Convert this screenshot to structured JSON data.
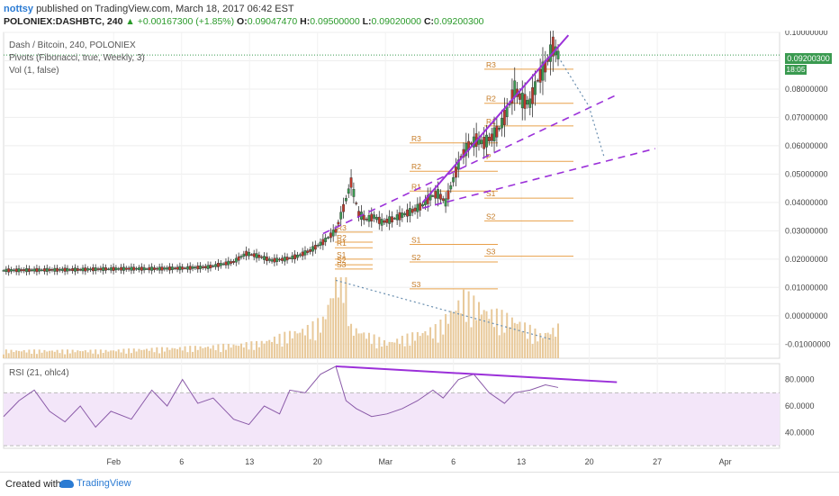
{
  "header": {
    "user": "nottsy",
    "published": "published on TradingView.com, March 18, 2017 06:42 EST",
    "symbol": "POLONIEX:DASHBTC, 240",
    "change_arrow": "▲",
    "change": "+0.00167300 (+1.85%)",
    "o_label": "O:",
    "o": "0.09047470",
    "h_label": "H:",
    "h": "0.09500000",
    "l_label": "L:",
    "l": "0.09020000",
    "c_label": "C:",
    "c": "0.09200300"
  },
  "legend": {
    "main": "Dash / Bitcoin, 240, POLONIEX",
    "pivots": "Pivots (Fibonacci, true, Weekly, 3)",
    "vol": "Vol (1, false)",
    "rsi": "RSI (21, ohlc4)"
  },
  "badges": {
    "price": "0.09200300",
    "time": "18:05"
  },
  "footer": {
    "created": "Created with",
    "brand": "TradingView"
  },
  "colors": {
    "candle_up": "#3a9a50",
    "candle_down": "#c0392b",
    "pivot": "#e8a04a",
    "trend": "#9b30d9",
    "volume": "#e8c99a",
    "rsi": "#8a5aa8",
    "rsi_band": "#f3e6f9"
  },
  "chart_data": {
    "type": "line",
    "x_ticks": [
      "Feb",
      "6",
      "13",
      "20",
      "Mar",
      "6",
      "13",
      "20",
      "27",
      "Apr"
    ],
    "price_axis": [
      "0.10000000",
      "0.09000000",
      "0.08000000",
      "0.07000000",
      "0.06000000",
      "0.05000000",
      "0.04000000",
      "0.03000000",
      "0.02000000",
      "0.01000000",
      "0.00000000",
      "-0.01000000"
    ],
    "rsi_axis": [
      "80.0000",
      "60.0000",
      "40.0000"
    ],
    "ylim_price": [
      -0.015,
      0.1
    ],
    "ylim_rsi": [
      28,
      92
    ],
    "price_points": [
      [
        0,
        0.016
      ],
      [
        10,
        0.0161
      ],
      [
        20,
        0.0162
      ],
      [
        30,
        0.0163
      ],
      [
        40,
        0.0165
      ],
      [
        50,
        0.0166
      ],
      [
        60,
        0.0166
      ],
      [
        70,
        0.0168
      ],
      [
        80,
        0.0172
      ],
      [
        90,
        0.019
      ],
      [
        95,
        0.022
      ],
      [
        100,
        0.021
      ],
      [
        105,
        0.0195
      ],
      [
        110,
        0.02
      ],
      [
        115,
        0.021
      ],
      [
        120,
        0.023
      ],
      [
        125,
        0.026
      ],
      [
        130,
        0.03
      ],
      [
        133,
        0.038
      ],
      [
        136,
        0.047
      ],
      [
        139,
        0.036
      ],
      [
        142,
        0.034
      ],
      [
        145,
        0.035
      ],
      [
        148,
        0.033
      ],
      [
        152,
        0.034
      ],
      [
        156,
        0.0355
      ],
      [
        160,
        0.037
      ],
      [
        164,
        0.039
      ],
      [
        167,
        0.042
      ],
      [
        170,
        0.043
      ],
      [
        173,
        0.04
      ],
      [
        176,
        0.048
      ],
      [
        179,
        0.056
      ],
      [
        182,
        0.06
      ],
      [
        185,
        0.062
      ],
      [
        188,
        0.061
      ],
      [
        191,
        0.063
      ],
      [
        194,
        0.066
      ],
      [
        197,
        0.072
      ],
      [
        200,
        0.08
      ],
      [
        203,
        0.076
      ],
      [
        206,
        0.075
      ],
      [
        209,
        0.083
      ],
      [
        212,
        0.088
      ],
      [
        215,
        0.095
      ],
      [
        217,
        0.092
      ]
    ],
    "rsi_points": [
      [
        0,
        52
      ],
      [
        6,
        64
      ],
      [
        12,
        72
      ],
      [
        18,
        56
      ],
      [
        24,
        48
      ],
      [
        30,
        60
      ],
      [
        36,
        44
      ],
      [
        42,
        56
      ],
      [
        50,
        50
      ],
      [
        58,
        72
      ],
      [
        64,
        60
      ],
      [
        70,
        80
      ],
      [
        76,
        62
      ],
      [
        82,
        66
      ],
      [
        90,
        50
      ],
      [
        96,
        46
      ],
      [
        102,
        60
      ],
      [
        108,
        54
      ],
      [
        112,
        72
      ],
      [
        118,
        70
      ],
      [
        124,
        84
      ],
      [
        128,
        88
      ],
      [
        130,
        90
      ],
      [
        134,
        64
      ],
      [
        138,
        58
      ],
      [
        144,
        52
      ],
      [
        150,
        54
      ],
      [
        156,
        58
      ],
      [
        162,
        64
      ],
      [
        168,
        72
      ],
      [
        172,
        66
      ],
      [
        178,
        80
      ],
      [
        184,
        84
      ],
      [
        190,
        70
      ],
      [
        196,
        62
      ],
      [
        200,
        70
      ],
      [
        206,
        72
      ],
      [
        212,
        76
      ],
      [
        217,
        74
      ]
    ],
    "volume_points": [
      [
        0,
        0.001
      ],
      [
        40,
        0.001
      ],
      [
        80,
        0.0015
      ],
      [
        100,
        0.002
      ],
      [
        120,
        0.004
      ],
      [
        125,
        0.005
      ],
      [
        130,
        0.01
      ],
      [
        133,
        0.013
      ],
      [
        136,
        0.004
      ],
      [
        150,
        0.002
      ],
      [
        170,
        0.004
      ],
      [
        180,
        0.008
      ],
      [
        190,
        0.006
      ],
      [
        200,
        0.005
      ],
      [
        210,
        0.003
      ],
      [
        217,
        0.004
      ]
    ],
    "pivots_left": [
      {
        "label": "R3",
        "value": 0.0295
      },
      {
        "label": "R2",
        "value": 0.026
      },
      {
        "label": "R1",
        "value": 0.024
      },
      {
        "label": "S1",
        "value": 0.02
      },
      {
        "label": "S2",
        "value": 0.018
      },
      {
        "label": "S3",
        "value": 0.0165
      }
    ],
    "pivots_mid": [
      {
        "label": "R3",
        "value": 0.061
      },
      {
        "label": "R2",
        "value": 0.051
      },
      {
        "label": "R1",
        "value": 0.044
      },
      {
        "label": "S1",
        "value": 0.0252
      },
      {
        "label": "S2",
        "value": 0.019
      },
      {
        "label": "S3",
        "value": 0.0095
      }
    ],
    "pivots_right": [
      {
        "label": "R3",
        "value": 0.087
      },
      {
        "label": "R2",
        "value": 0.075
      },
      {
        "label": "R1",
        "value": 0.067
      },
      {
        "label": "P",
        "value": 0.0545
      },
      {
        "label": "S1",
        "value": 0.0415
      },
      {
        "label": "S2",
        "value": 0.0335
      },
      {
        "label": "S3",
        "value": 0.021
      }
    ]
  }
}
